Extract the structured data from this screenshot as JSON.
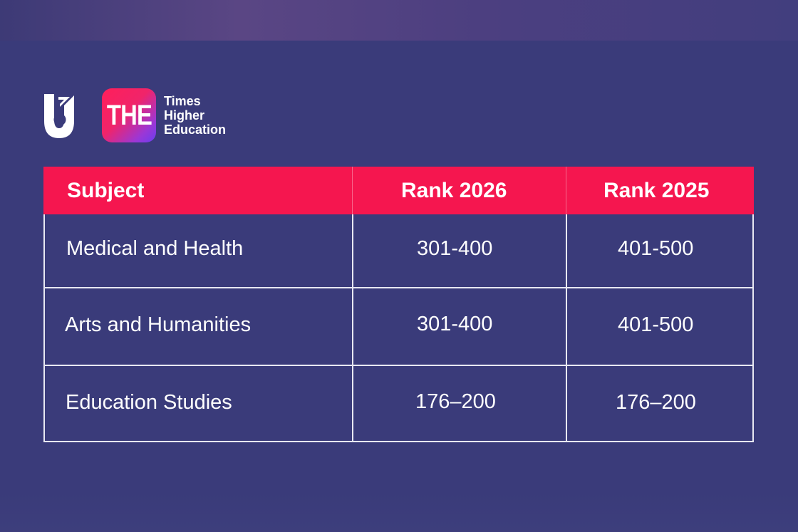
{
  "logos": {
    "university_logo": "university-crest-icon",
    "the_badge_text": "THE",
    "the_wordmark": [
      "Times",
      "Higher",
      "Education"
    ]
  },
  "colors": {
    "background": "#3a3b7a",
    "header_fill": "#f5164f",
    "grid_lines": "#e8e8f2",
    "text": "#ffffff"
  },
  "table": {
    "headers": [
      "Subject",
      "Rank 2026",
      "Rank 2025"
    ],
    "rows": [
      [
        "Medical and Health",
        "301-400",
        "401-500"
      ],
      [
        "Arts and Humanities",
        "301-400",
        "401-500"
      ],
      [
        "Education Studies",
        "176–200",
        "176–200"
      ]
    ]
  }
}
